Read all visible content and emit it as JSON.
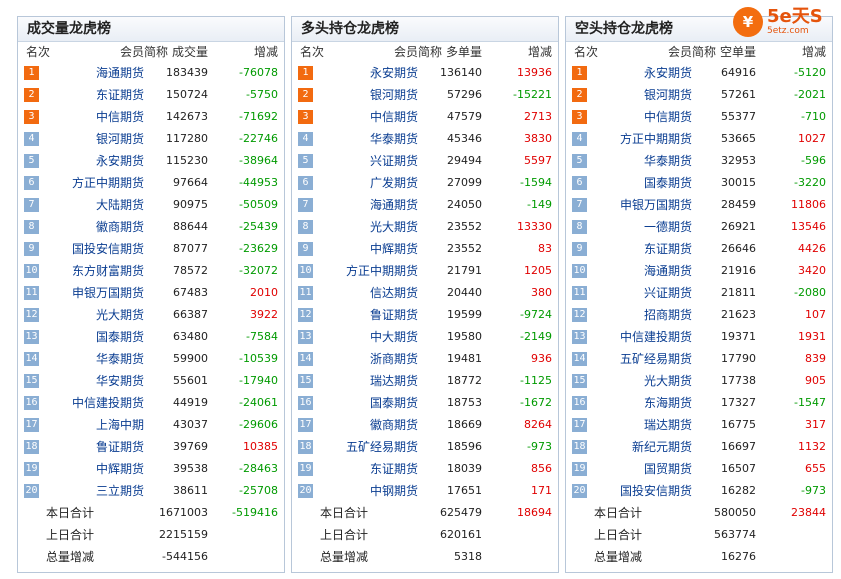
{
  "headers": {
    "rank": "名次",
    "name": "会员简称"
  },
  "panels": [
    {
      "title": "成交量龙虎榜",
      "vol_header": "成交量",
      "chg_header": "增减",
      "rows": [
        {
          "name": "海通期货",
          "vol": "183439",
          "chg": "-76078"
        },
        {
          "name": "东证期货",
          "vol": "150724",
          "chg": "-5750"
        },
        {
          "name": "中信期货",
          "vol": "142673",
          "chg": "-71692"
        },
        {
          "name": "银河期货",
          "vol": "117280",
          "chg": "-22746"
        },
        {
          "name": "永安期货",
          "vol": "115230",
          "chg": "-38964"
        },
        {
          "name": "方正中期期货",
          "vol": "97664",
          "chg": "-44953"
        },
        {
          "name": "大陆期货",
          "vol": "90975",
          "chg": "-50509"
        },
        {
          "name": "徽商期货",
          "vol": "88644",
          "chg": "-25439"
        },
        {
          "name": "国投安信期货",
          "vol": "87077",
          "chg": "-23629"
        },
        {
          "name": "东方财富期货",
          "vol": "78572",
          "chg": "-32072"
        },
        {
          "name": "申银万国期货",
          "vol": "67483",
          "chg": "2010"
        },
        {
          "name": "光大期货",
          "vol": "66387",
          "chg": "3922"
        },
        {
          "name": "国泰期货",
          "vol": "63480",
          "chg": "-7584"
        },
        {
          "name": "华泰期货",
          "vol": "59900",
          "chg": "-10539"
        },
        {
          "name": "华安期货",
          "vol": "55601",
          "chg": "-17940"
        },
        {
          "name": "中信建投期货",
          "vol": "44919",
          "chg": "-24061"
        },
        {
          "name": "上海中期",
          "vol": "43037",
          "chg": "-29606"
        },
        {
          "name": "鲁证期货",
          "vol": "39769",
          "chg": "10385"
        },
        {
          "name": "中辉期货",
          "vol": "39538",
          "chg": "-28463"
        },
        {
          "name": "三立期货",
          "vol": "38611",
          "chg": "-25708"
        }
      ],
      "summary": [
        {
          "label": "本日合计",
          "vol": "1671003",
          "chg": "-519416"
        },
        {
          "label": "上日合计",
          "vol": "2215159",
          "chg": ""
        },
        {
          "label": "总量增减",
          "vol": "-544156",
          "chg": ""
        }
      ]
    },
    {
      "title": "多头持仓龙虎榜",
      "vol_header": "多单量",
      "chg_header": "增减",
      "rows": [
        {
          "name": "永安期货",
          "vol": "136140",
          "chg": "13936"
        },
        {
          "name": "银河期货",
          "vol": "57296",
          "chg": "-15221"
        },
        {
          "name": "中信期货",
          "vol": "47579",
          "chg": "2713"
        },
        {
          "name": "华泰期货",
          "vol": "45346",
          "chg": "3830"
        },
        {
          "name": "兴证期货",
          "vol": "29494",
          "chg": "5597"
        },
        {
          "name": "广发期货",
          "vol": "27099",
          "chg": "-1594"
        },
        {
          "name": "海通期货",
          "vol": "24050",
          "chg": "-149"
        },
        {
          "name": "光大期货",
          "vol": "23552",
          "chg": "13330"
        },
        {
          "name": "中辉期货",
          "vol": "23552",
          "chg": "83"
        },
        {
          "name": "方正中期期货",
          "vol": "21791",
          "chg": "1205"
        },
        {
          "name": "信达期货",
          "vol": "20440",
          "chg": "380"
        },
        {
          "name": "鲁证期货",
          "vol": "19599",
          "chg": "-9724"
        },
        {
          "name": "中大期货",
          "vol": "19580",
          "chg": "-2149"
        },
        {
          "name": "浙商期货",
          "vol": "19481",
          "chg": "936"
        },
        {
          "name": "瑞达期货",
          "vol": "18772",
          "chg": "-1125"
        },
        {
          "name": "国泰期货",
          "vol": "18753",
          "chg": "-1672"
        },
        {
          "name": "徽商期货",
          "vol": "18669",
          "chg": "8264"
        },
        {
          "name": "五矿经易期货",
          "vol": "18596",
          "chg": "-973"
        },
        {
          "name": "东证期货",
          "vol": "18039",
          "chg": "856"
        },
        {
          "name": "中钢期货",
          "vol": "17651",
          "chg": "171"
        }
      ],
      "summary": [
        {
          "label": "本日合计",
          "vol": "625479",
          "chg": "18694"
        },
        {
          "label": "上日合计",
          "vol": "620161",
          "chg": ""
        },
        {
          "label": "总量增减",
          "vol": "5318",
          "chg": ""
        }
      ]
    },
    {
      "title": "空头持仓龙虎榜",
      "vol_header": "空单量",
      "chg_header": "增减",
      "rows": [
        {
          "name": "永安期货",
          "vol": "64916",
          "chg": "-5120"
        },
        {
          "name": "银河期货",
          "vol": "57261",
          "chg": "-2021"
        },
        {
          "name": "中信期货",
          "vol": "55377",
          "chg": "-710"
        },
        {
          "name": "方正中期期货",
          "vol": "53665",
          "chg": "1027"
        },
        {
          "name": "华泰期货",
          "vol": "32953",
          "chg": "-596"
        },
        {
          "name": "国泰期货",
          "vol": "30015",
          "chg": "-3220"
        },
        {
          "name": "申银万国期货",
          "vol": "28459",
          "chg": "11806"
        },
        {
          "name": "一德期货",
          "vol": "26921",
          "chg": "13546"
        },
        {
          "name": "东证期货",
          "vol": "26646",
          "chg": "4426"
        },
        {
          "name": "海通期货",
          "vol": "21916",
          "chg": "3420"
        },
        {
          "name": "兴证期货",
          "vol": "21811",
          "chg": "-2080"
        },
        {
          "name": "招商期货",
          "vol": "21623",
          "chg": "107"
        },
        {
          "name": "中信建投期货",
          "vol": "19371",
          "chg": "1931"
        },
        {
          "name": "五矿经易期货",
          "vol": "17790",
          "chg": "839"
        },
        {
          "name": "光大期货",
          "vol": "17738",
          "chg": "905"
        },
        {
          "name": "东海期货",
          "vol": "17327",
          "chg": "-1547"
        },
        {
          "name": "瑞达期货",
          "vol": "16775",
          "chg": "317"
        },
        {
          "name": "新纪元期货",
          "vol": "16697",
          "chg": "1132"
        },
        {
          "name": "国贸期货",
          "vol": "16507",
          "chg": "655"
        },
        {
          "name": "国投安信期货",
          "vol": "16282",
          "chg": "-973"
        }
      ],
      "summary": [
        {
          "label": "本日合计",
          "vol": "580050",
          "chg": "23844"
        },
        {
          "label": "上日合计",
          "vol": "563774",
          "chg": ""
        },
        {
          "label": "总量增减",
          "vol": "16276",
          "chg": ""
        }
      ]
    }
  ],
  "logo": {
    "main": "5e天S",
    "sub": "5etz.com",
    "mark": "¥",
    "color": "#f36d0f"
  },
  "colors": {
    "up": "#e00000",
    "down": "#009a00",
    "top_badge": "#f26a10",
    "badge": "#8aaed4"
  }
}
